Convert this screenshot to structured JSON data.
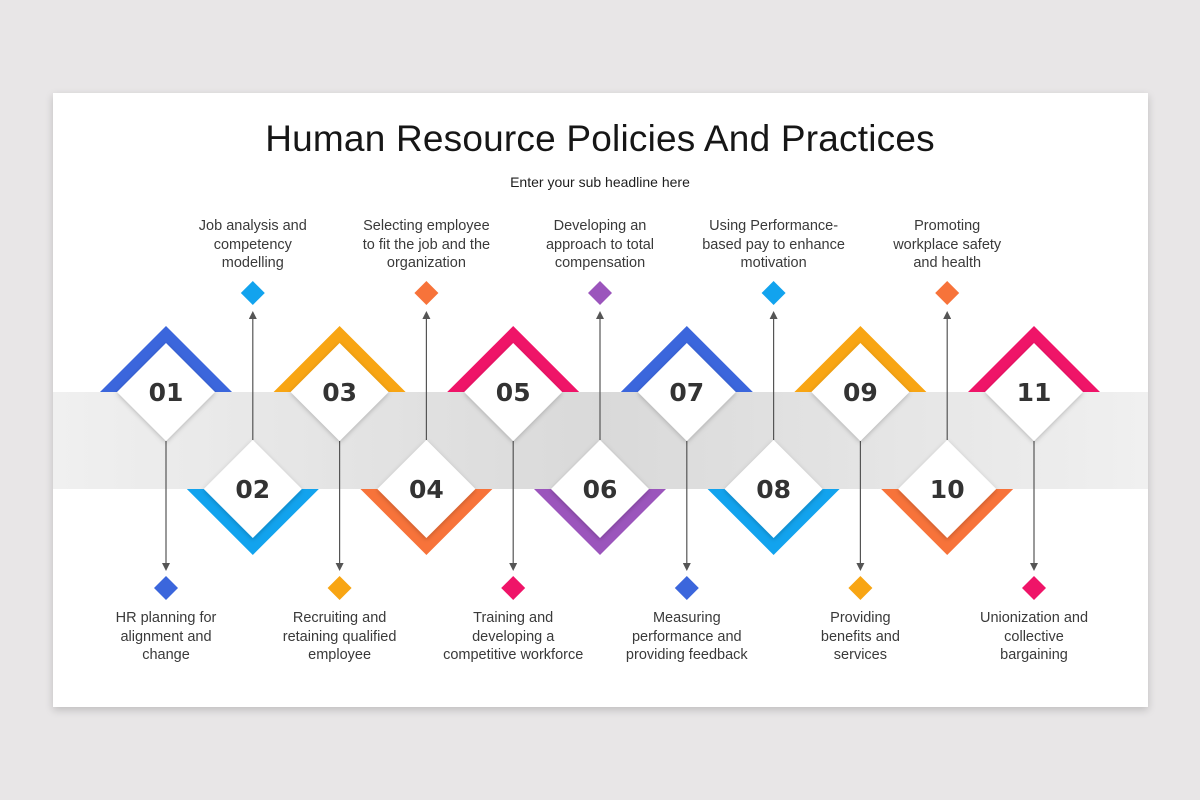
{
  "slide": {
    "title": "Human Resource Policies And Practices",
    "subtitle": "Enter your sub headline here"
  },
  "colors": {
    "background": "#e8e6e7",
    "card": "#ffffff",
    "band_edge": "#f0f0f0",
    "band_center": "#d9d9d9",
    "number_text": "#333333",
    "label_text": "#3a3a3a",
    "arrow": "#555555"
  },
  "steps": [
    {
      "number": "01",
      "position": "top",
      "color": "#3b66dc",
      "label": "HR planning for alignment and change",
      "label_lines": [
        "HR planning for",
        "alignment and",
        "change"
      ]
    },
    {
      "number": "02",
      "position": "bottom",
      "color": "#12a3ee",
      "label": "Job analysis and competency modelling",
      "label_lines": [
        "Job analysis and",
        "competency",
        "modelling"
      ]
    },
    {
      "number": "03",
      "position": "top",
      "color": "#f8a513",
      "label": "Recruiting and retaining qualified employee",
      "label_lines": [
        "Recruiting and",
        "retaining qualified",
        "employee"
      ]
    },
    {
      "number": "04",
      "position": "bottom",
      "color": "#f7733a",
      "label": "Selecting employee to fit the job and the organization",
      "label_lines": [
        "Selecting employee",
        "to fit the job and the",
        "organization"
      ]
    },
    {
      "number": "05",
      "position": "top",
      "color": "#ef1468",
      "label": "Training and developing a competitive workforce",
      "label_lines": [
        "Training and",
        "developing a",
        "competitive workforce"
      ]
    },
    {
      "number": "06",
      "position": "bottom",
      "color": "#9b55bc",
      "label": "Developing an approach to total compensation",
      "label_lines": [
        "Developing an",
        "approach to total",
        "compensation"
      ]
    },
    {
      "number": "07",
      "position": "top",
      "color": "#3b66dc",
      "label": "Measuring performance and providing feedback",
      "label_lines": [
        "Measuring",
        "performance and",
        "providing feedback"
      ]
    },
    {
      "number": "08",
      "position": "bottom",
      "color": "#12a3ee",
      "label": "Using Performance-based pay to enhance motivation",
      "label_lines": [
        "Using Performance-",
        "based pay to enhance",
        "motivation"
      ]
    },
    {
      "number": "09",
      "position": "top",
      "color": "#f8a513",
      "label": "Providing benefits and services",
      "label_lines": [
        "Providing",
        "benefits and",
        "services"
      ]
    },
    {
      "number": "10",
      "position": "bottom",
      "color": "#f7733a",
      "label": "Promoting workplace safety and health",
      "label_lines": [
        "Promoting",
        "workplace safety",
        "and health"
      ]
    },
    {
      "number": "11",
      "position": "top",
      "color": "#ef1468",
      "label": "Unionization and collective bargaining",
      "label_lines": [
        "Unionization and",
        "collective",
        "bargaining"
      ]
    }
  ]
}
